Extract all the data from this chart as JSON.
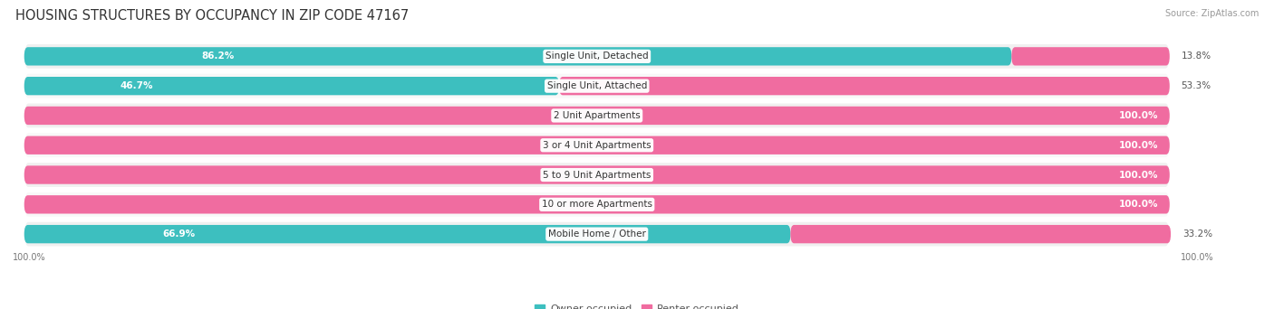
{
  "title": "HOUSING STRUCTURES BY OCCUPANCY IN ZIP CODE 47167",
  "source": "Source: ZipAtlas.com",
  "categories": [
    "Single Unit, Detached",
    "Single Unit, Attached",
    "2 Unit Apartments",
    "3 or 4 Unit Apartments",
    "5 to 9 Unit Apartments",
    "10 or more Apartments",
    "Mobile Home / Other"
  ],
  "owner_pct": [
    86.2,
    46.7,
    0.0,
    0.0,
    0.0,
    0.0,
    66.9
  ],
  "renter_pct": [
    13.8,
    53.3,
    100.0,
    100.0,
    100.0,
    100.0,
    33.2
  ],
  "owner_color": "#3DBFBF",
  "renter_color": "#F06CA0",
  "row_bg_color": "#EFEFEF",
  "bg_color": "#FFFFFF",
  "title_fontsize": 10.5,
  "bar_label_fontsize": 7.5,
  "cat_label_fontsize": 7.5,
  "axis_label_fontsize": 7,
  "legend_fontsize": 8,
  "source_fontsize": 7
}
